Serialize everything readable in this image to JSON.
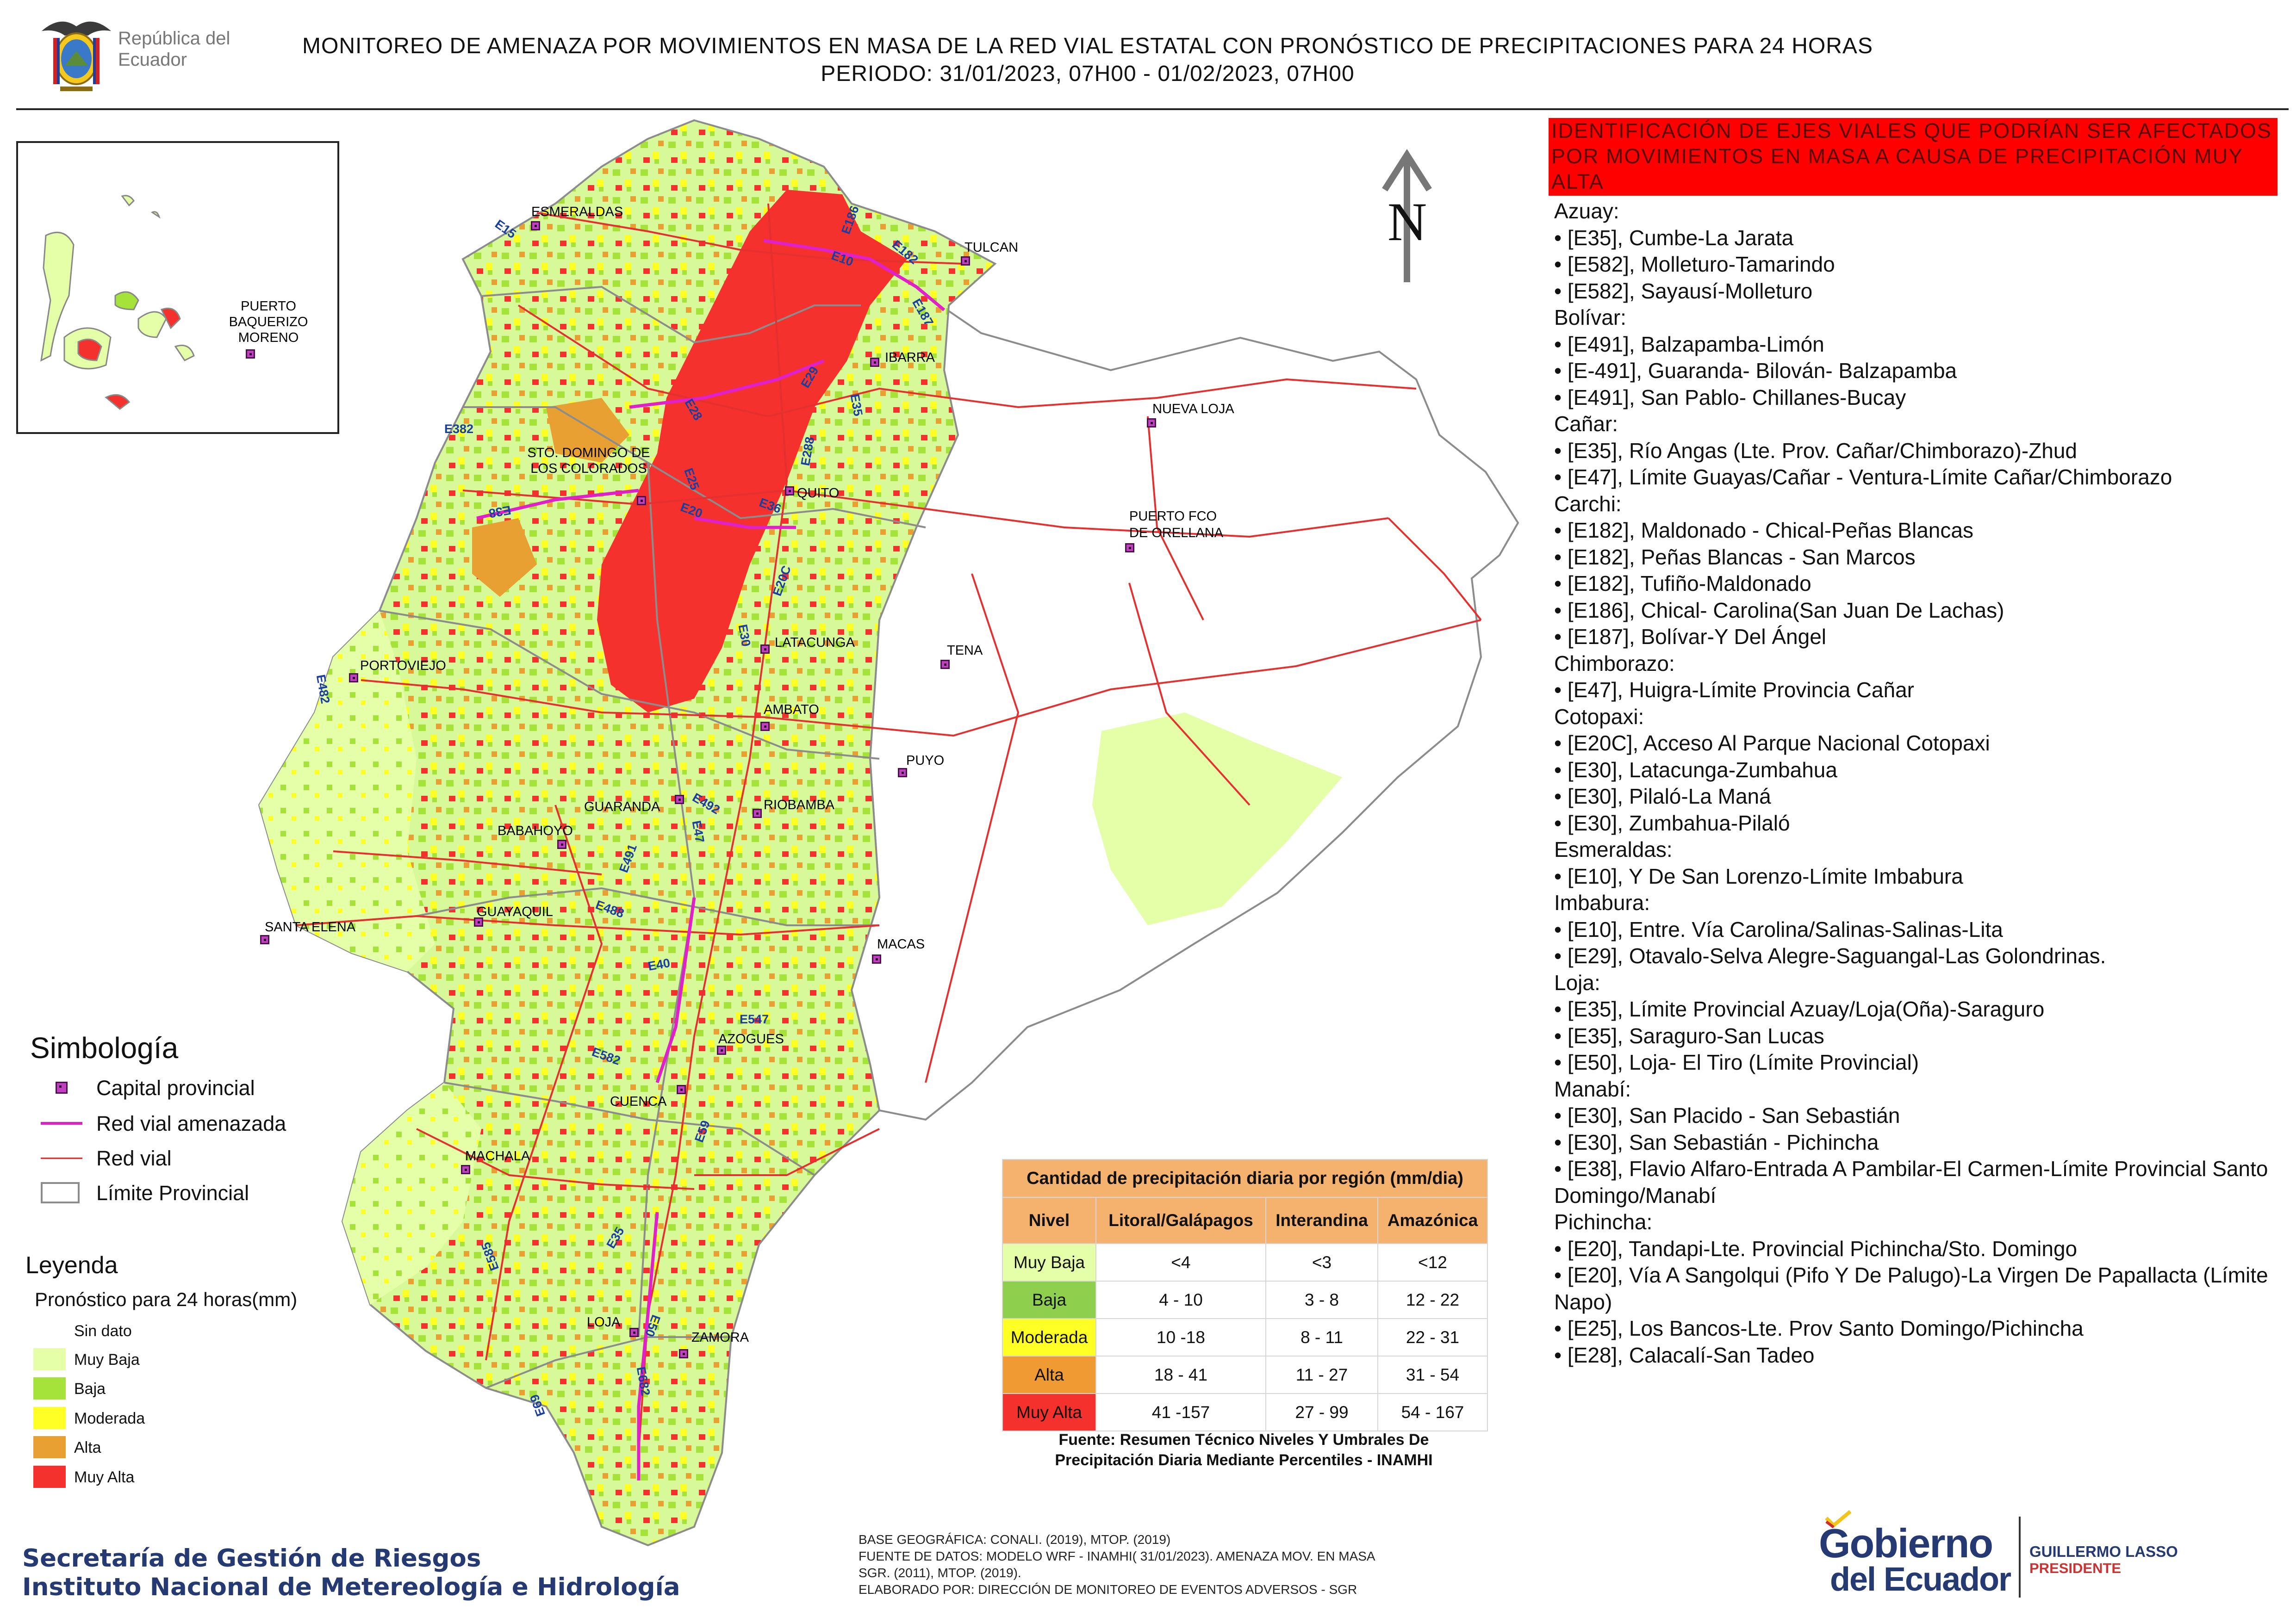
{
  "header": {
    "emblem_caption": "República del Ecuador",
    "title_line1": "MONITOREO DE AMENAZA POR MOVIMIENTOS EN MASA DE LA RED VIAL  ESTATAL  CON PRONÓSTICO  DE  PRECIPITACIONES PARA 24 HORAS",
    "title_line2": "PERIODO: 31/01/2023, 07H00 - 01/02/2023, 07H00"
  },
  "map": {
    "north_label": "N",
    "inset_label": "PUERTO BAQUERIZO MORENO",
    "cities": [
      {
        "name": "ESMERALDAS"
      },
      {
        "name": "TULCAN"
      },
      {
        "name": "IBARRA"
      },
      {
        "name": "NUEVA LOJA"
      },
      {
        "name": "STO. DOMINGO DE LOS COLORADOS"
      },
      {
        "name": "QUITO"
      },
      {
        "name": "PUERTO FCO DE ORELLANA"
      },
      {
        "name": "PORTOVIEJO"
      },
      {
        "name": "LATACUNGA"
      },
      {
        "name": "TENA"
      },
      {
        "name": "AMBATO"
      },
      {
        "name": "PUYO"
      },
      {
        "name": "GUARANDA"
      },
      {
        "name": "RIOBAMBA"
      },
      {
        "name": "BABAHOYO"
      },
      {
        "name": "SANTA ELENA"
      },
      {
        "name": "GUAYAQUIL"
      },
      {
        "name": "MACAS"
      },
      {
        "name": "AZOGUES"
      },
      {
        "name": "CUENCA"
      },
      {
        "name": "MACHALA"
      },
      {
        "name": "LOJA"
      },
      {
        "name": "ZAMORA"
      }
    ],
    "road_codes": [
      "E15",
      "E10",
      "E186",
      "E182",
      "E187",
      "E29",
      "E35",
      "E28",
      "E382",
      "E38",
      "E25",
      "E20",
      "E288",
      "E36",
      "E20C",
      "E30",
      "E482",
      "E492",
      "E47",
      "E491",
      "E488",
      "E40",
      "E547",
      "E582",
      "E59",
      "E585",
      "E35",
      "E50",
      "E682",
      "E69"
    ]
  },
  "alert_title": "IDENTIFICACIÓN DE EJES VIALES QUE PODRÍAN SER AFECTADOS POR MOVIMIENTOS EN MASA A CAUSA DE PRECIPITACIÓN MUY ALTA",
  "roads": [
    {
      "province": "Azuay:",
      "items": [
        "[E35], Cumbe-La Jarata",
        "[E582], Molleturo-Tamarindo",
        "[E582], Sayausí-Molleturo"
      ]
    },
    {
      "province": "Bolívar:",
      "items": [
        "[E491], Balzapamba-Limón",
        "[E-491], Guaranda- Bilován- Balzapamba",
        "[E491], San Pablo- Chillanes-Bucay"
      ]
    },
    {
      "province": "Cañar:",
      "items": [
        "[E35], Río Angas (Lte. Prov. Cañar/Chimborazo)-Zhud",
        "[E47], Límite Guayas/Cañar - Ventura-Límite Cañar/Chimborazo"
      ]
    },
    {
      "province": "Carchi:",
      "items": [
        "[E182], Maldonado - Chical-Peñas Blancas",
        "[E182], Peñas Blancas - San Marcos",
        "[E182], Tufiño-Maldonado",
        "[E186], Chical- Carolina(San Juan De Lachas)",
        "[E187], Bolívar-Y Del Ángel"
      ]
    },
    {
      "province": "Chimborazo:",
      "items": [
        "[E47], Huigra-Límite Provincia Cañar"
      ]
    },
    {
      "province": "Cotopaxi:",
      "items": [
        "[E20C], Acceso Al Parque Nacional Cotopaxi",
        "[E30], Latacunga-Zumbahua",
        "[E30], Pilaló-La Maná",
        "[E30], Zumbahua-Pilaló"
      ]
    },
    {
      "province": "Esmeraldas:",
      "items": [
        "[E10], Y De San Lorenzo-Límite Imbabura"
      ]
    },
    {
      "province": "Imbabura:",
      "items": [
        "[E10], Entre. Vía Carolina/Salinas-Salinas-Lita",
        "[E29], Otavalo-Selva Alegre-Saguangal-Las Golondrinas."
      ]
    },
    {
      "province": "Loja:",
      "items": [
        "[E35], Límite Provincial Azuay/Loja(Oña)-Saraguro",
        "[E35], Saraguro-San Lucas",
        "[E50], Loja- El Tiro (Límite Provincial)"
      ]
    },
    {
      "province": "Manabí:",
      "items": [
        "[E30], San Placido - San Sebastián",
        "[E30], San Sebastián - Pichincha",
        "[E38], Flavio Alfaro-Entrada A Pambilar-El Carmen-Límite Provincial Santo Domingo/Manabí"
      ]
    },
    {
      "province": "Pichincha:",
      "items": [
        "[E20], Tandapi-Lte. Provincial Pichincha/Sto. Domingo",
        "[E20], Vía A Sangolqui (Pifo Y De Palugo)-La Virgen De Papallacta (Límite Napo)",
        "[E25], Los Bancos-Lte. Prov Santo Domingo/Pichincha",
        "[E28], Calacalí-San Tadeo"
      ]
    }
  ],
  "simbologia": {
    "title": "Simbología",
    "items": [
      {
        "label": "Capital provincial",
        "icon": "capital-square-icon"
      },
      {
        "label": "Red vial amenazada",
        "icon": "magenta-line-icon",
        "color": "#e020c8"
      },
      {
        "label": "Red vial",
        "icon": "red-line-icon",
        "color": "#e53030"
      },
      {
        "label": "Límite Provincial",
        "icon": "province-box-icon"
      }
    ]
  },
  "leyenda": {
    "title": "Leyenda",
    "subtitle": "Pronóstico para 24 horas(mm)",
    "items": [
      {
        "label": "Sin dato",
        "color": "#ffffff"
      },
      {
        "label": " Muy Baja",
        "color": "#e4ffa8"
      },
      {
        "label": "Baja",
        "color": "#a6e33a"
      },
      {
        "label": "Moderada",
        "color": "#ffff26"
      },
      {
        "label": "Alta",
        "color": "#e8a033"
      },
      {
        "label": "Muy Alta",
        "color": "#f4312c"
      }
    ]
  },
  "precip_table": {
    "caption": "Cantidad de precipitación diaria por región (mm/dia)",
    "headers": [
      "Nivel",
      "Litoral/Galápagos",
      "Interandina",
      "Amazónica"
    ],
    "rows": [
      {
        "nivel": "Muy Baja",
        "color": "#e4ffa8",
        "litoral": "<4",
        "interandina": "<3",
        "amazonica": "<12"
      },
      {
        "nivel": "Baja",
        "color": "#8ed04e",
        "litoral": "4 - 10",
        "interandina": "3 - 8",
        "amazonica": "12 - 22"
      },
      {
        "nivel": "Moderada",
        "color": "#ffff26",
        "litoral": "10 -18",
        "interandina": "8 - 11",
        "amazonica": "22 - 31"
      },
      {
        "nivel": "Alta",
        "color": "#f09a33",
        "litoral": "18 - 41",
        "interandina": "11 - 27",
        "amazonica": "31 - 54"
      },
      {
        "nivel": "Muy Alta",
        "color": "#f4312c",
        "litoral": "41 -157",
        "interandina": "27 - 99",
        "amazonica": "54 - 167"
      }
    ],
    "source_line1": "Fuente: Resumen Técnico Niveles Y Umbrales De",
    "source_line2": "Precipitación Diaria Mediante Percentiles - INAMHI"
  },
  "footer": {
    "org_line1": "Secretaría de Gestión de Riesgos",
    "org_line2": "Instituto Nacional de Metereología e Hidrología",
    "credit_line1": "BASE GEOGRÁFICA: CONALI. (2019), MTOP. (2019)",
    "credit_line2": "FUENTE DE DATOS: MODELO WRF - INAMHI( 31/01/2023).  AMENAZA MOV. EN MASA",
    "credit_line3": "SGR. (2011), MTOP. (2019).",
    "credit_line4": "ELABORADO POR: DIRECCIÓN DE MONITOREO DE EVENTOS ADVERSOS - SGR",
    "gob_word1": "Gobierno",
    "gob_word2": "del Ecuador",
    "president_name": "GUILLERMO LASSO",
    "president_role": "PRESIDENTE"
  }
}
